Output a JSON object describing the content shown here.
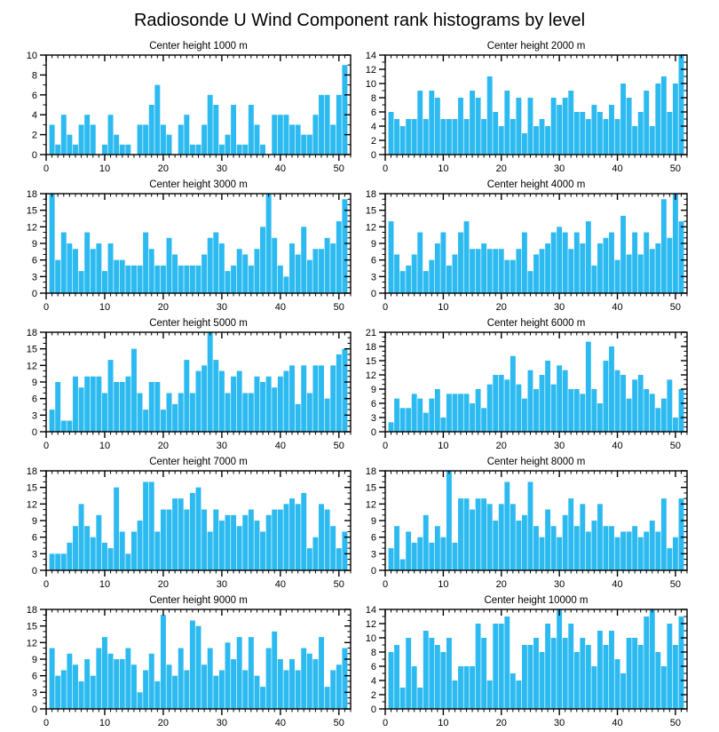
{
  "header": {
    "title": "Radiosonde U Wind Component rank histograms by level"
  },
  "chart_data": {
    "type": "bar",
    "title": "Radiosonde U Wind Component rank histograms by level",
    "bar_color": "#2CBAF0",
    "axis_color": "#000000",
    "grid": false,
    "legend": false,
    "x_ticks": [
      0,
      10,
      20,
      30,
      40,
      50
    ],
    "xlim": [
      0,
      52
    ],
    "x_minor_step": 1,
    "y_minor_step": 1,
    "panels": [
      {
        "title": "Center height 1000 m",
        "ylim": [
          0,
          10
        ],
        "ystep": 2,
        "values": [
          3,
          1,
          4,
          2,
          1,
          3,
          4,
          3,
          0,
          1,
          4,
          2,
          1,
          1,
          0,
          3,
          3,
          5,
          7,
          3,
          2,
          0,
          3,
          4,
          1,
          1,
          3,
          6,
          5,
          1,
          2,
          5,
          1,
          1,
          5,
          3,
          1,
          0,
          4,
          4,
          4,
          3,
          3,
          2,
          2,
          4,
          6,
          6,
          3,
          6,
          9
        ]
      },
      {
        "title": "Center height 2000 m",
        "ylim": [
          0,
          14
        ],
        "ystep": 2,
        "values": [
          6,
          5,
          4,
          5,
          5,
          9,
          5,
          9,
          8,
          5,
          5,
          5,
          8,
          5,
          9,
          8,
          5,
          11,
          6,
          4,
          9,
          5,
          8,
          3,
          8,
          4,
          5,
          4,
          8,
          7,
          8,
          9,
          6,
          6,
          5,
          7,
          6,
          5,
          7,
          5,
          10,
          8,
          4,
          6,
          9,
          4,
          10,
          11,
          6,
          10,
          14
        ]
      },
      {
        "title": "Center height 3000 m",
        "ylim": [
          0,
          18
        ],
        "ystep": 3,
        "values": [
          18,
          6,
          11,
          9,
          8,
          4,
          11,
          8,
          9,
          4,
          9,
          6,
          6,
          5,
          5,
          5,
          11,
          8,
          5,
          5,
          10,
          7,
          5,
          5,
          5,
          5,
          7,
          10,
          11,
          9,
          4,
          5,
          8,
          7,
          5,
          8,
          12,
          18,
          10,
          5,
          3,
          9,
          7,
          12,
          6,
          8,
          8,
          10,
          9,
          13,
          17
        ]
      },
      {
        "title": "Center height 4000 m",
        "ylim": [
          0,
          18
        ],
        "ystep": 3,
        "values": [
          13,
          7,
          4,
          5,
          7,
          11,
          4,
          6,
          9,
          11,
          5,
          7,
          11,
          13,
          8,
          8,
          9,
          8,
          8,
          8,
          6,
          6,
          8,
          11,
          4,
          7,
          8,
          9,
          11,
          12,
          11,
          8,
          11,
          9,
          13,
          5,
          9,
          10,
          11,
          6,
          14,
          7,
          11,
          7,
          11,
          8,
          9,
          17,
          10,
          18,
          13
        ]
      },
      {
        "title": "Center height 5000 m",
        "ylim": [
          0,
          18
        ],
        "ystep": 3,
        "values": [
          4,
          9,
          2,
          2,
          10,
          8,
          10,
          10,
          10,
          7,
          13,
          9,
          9,
          10,
          15,
          7,
          4,
          9,
          9,
          4,
          7,
          5,
          7,
          13,
          7,
          11,
          12,
          18,
          13,
          11,
          7,
          10,
          11,
          7,
          7,
          10,
          9,
          10,
          8,
          10,
          11,
          12,
          5,
          12,
          7,
          12,
          12,
          6,
          12,
          14,
          15
        ]
      },
      {
        "title": "Center height 6000 m",
        "ylim": [
          0,
          21
        ],
        "ystep": 3,
        "values": [
          2,
          7,
          5,
          5,
          8,
          7,
          4,
          7,
          9,
          3,
          8,
          8,
          8,
          8,
          6,
          9,
          5,
          10,
          12,
          12,
          11,
          16,
          10,
          7,
          13,
          9,
          12,
          15,
          10,
          14,
          13,
          9,
          9,
          8,
          19,
          9,
          6,
          15,
          18,
          13,
          12,
          7,
          11,
          12,
          9,
          8,
          5,
          7,
          11,
          3,
          9
        ]
      },
      {
        "title": "Center height 7000 m",
        "ylim": [
          0,
          18
        ],
        "ystep": 3,
        "values": [
          3,
          3,
          3,
          5,
          8,
          12,
          8,
          6,
          10,
          5,
          4,
          15,
          7,
          3,
          7,
          9,
          16,
          16,
          7,
          11,
          11,
          13,
          13,
          11,
          14,
          15,
          11,
          7,
          11,
          9,
          10,
          10,
          8,
          10,
          11,
          9,
          7,
          10,
          11,
          11,
          12,
          13,
          12,
          14,
          4,
          6,
          12,
          11,
          8,
          4,
          7
        ]
      },
      {
        "title": "Center height 8000 m",
        "ylim": [
          0,
          18
        ],
        "ystep": 3,
        "values": [
          4,
          8,
          2,
          7,
          5,
          6,
          10,
          5,
          8,
          6,
          18,
          5,
          13,
          13,
          11,
          13,
          13,
          12,
          9,
          12,
          16,
          12,
          9,
          10,
          16,
          8,
          6,
          11,
          8,
          6,
          10,
          13,
          8,
          12,
          7,
          9,
          12,
          8,
          8,
          6,
          7,
          7,
          8,
          6,
          7,
          9,
          7,
          13,
          4,
          6,
          13
        ]
      },
      {
        "title": "Center height 9000 m",
        "ylim": [
          0,
          18
        ],
        "ystep": 3,
        "values": [
          11,
          6,
          7,
          10,
          8,
          5,
          9,
          6,
          11,
          13,
          10,
          9,
          9,
          11,
          8,
          3,
          7,
          10,
          5,
          17,
          8,
          6,
          11,
          7,
          16,
          15,
          8,
          11,
          6,
          7,
          12,
          9,
          13,
          7,
          13,
          6,
          4,
          11,
          14,
          9,
          7,
          9,
          7,
          11,
          10,
          9,
          13,
          4,
          7,
          8,
          11
        ]
      },
      {
        "title": "Center height 10000 m",
        "ylim": [
          0,
          14
        ],
        "ystep": 2,
        "values": [
          8,
          9,
          3,
          10,
          6,
          3,
          11,
          10,
          9,
          8,
          10,
          4,
          6,
          6,
          6,
          12,
          10,
          4,
          12,
          12,
          13,
          5,
          4,
          9,
          9,
          10,
          8,
          12,
          10,
          14,
          10,
          12,
          8,
          10,
          9,
          6,
          11,
          9,
          11,
          7,
          5,
          10,
          10,
          9,
          13,
          14,
          8,
          6,
          12,
          9,
          13
        ]
      }
    ]
  }
}
